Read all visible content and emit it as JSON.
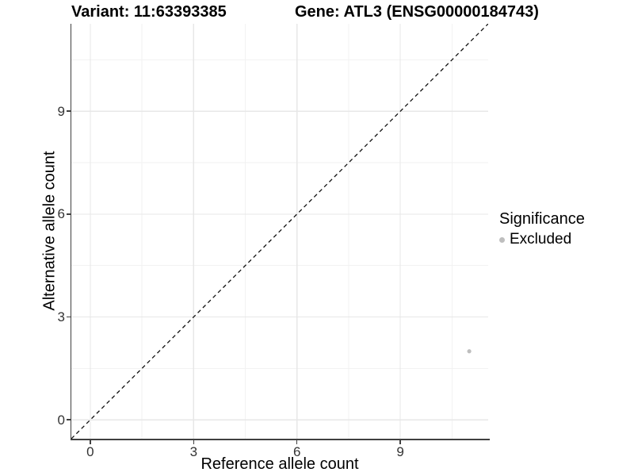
{
  "chart_data": {
    "type": "scatter",
    "title_variant": "Variant: 11:63393385",
    "title_gene": "Gene: ATL3 (ENSG00000184743)",
    "xlabel": "Reference allele count",
    "ylabel": "Alternative allele count",
    "xlim": [
      0,
      11
    ],
    "ylim": [
      0,
      11
    ],
    "expansion": 0.05,
    "x_ticks": [
      0,
      3,
      6,
      9
    ],
    "y_ticks": [
      0,
      3,
      6,
      9
    ],
    "x_minor_breaks": [
      1.5,
      4.5,
      7.5,
      10.5
    ],
    "y_minor_breaks": [
      1.5,
      4.5,
      7.5,
      10.5
    ],
    "grid": "major+minor",
    "identity_line": {
      "slope": 1,
      "intercept": 0,
      "style": "dashed",
      "color": "#111111"
    },
    "series": [
      {
        "name": "Excluded",
        "color": "#bebebe",
        "points": [
          {
            "x": 11,
            "y": 2
          }
        ]
      }
    ],
    "legend": {
      "title": "Significance",
      "position": "right",
      "entries": [
        {
          "label": "Excluded",
          "color": "#bebebe",
          "marker": "circle"
        }
      ]
    }
  },
  "colors": {
    "background": "#ffffff",
    "axis_line": "#404040",
    "tick_label": "#333333",
    "grid_major": "#e7e7e7",
    "grid_minor": "#f2f2f2",
    "point": "#bebebe"
  }
}
